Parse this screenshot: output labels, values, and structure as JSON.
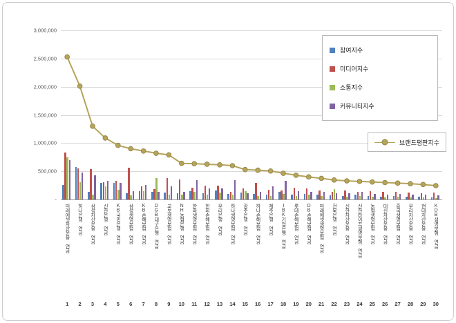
{
  "chart_data": {
    "type": "bar+line",
    "title": "",
    "xlabel": "",
    "ylabel": "",
    "ylim": [
      0,
      3000000
    ],
    "grid": true,
    "legend_position": "right-top",
    "ytick_values": [
      0,
      500000,
      1000000,
      1500000,
      2000000,
      2500000,
      3000000
    ],
    "ytick_labels": [
      "-",
      "500,000",
      "1,000,000",
      "1,500,000",
      "2,000,000",
      "2,500,000",
      "3,000,000"
    ],
    "categories": [
      "미래에셋자산운용 연금",
      "하나은행 연금",
      "삼성자산운용 연금",
      "신한은행 연금",
      "KB국민은행 연금",
      "삼성생명보험 연금",
      "KB손해보험 연금",
      "DGB대구은행 연금",
      "교보생명보험 연금",
      "NH농협은행 연금",
      "한화생명보험 연금",
      "한화손해보험 연금",
      "우리은행 연금",
      "하나생명보험 연금",
      "광주은행 연금",
      "하나손해보험 연금",
      "제주은행 연금",
      "IBK기업은행 연금",
      "롯데손해보험 연금",
      "DB손해보험 연금",
      "미래에셋생명보험 연금",
      "전북은행 연금",
      "신한자산운용 연금",
      "신한라이프생명보험 연금",
      "농협생명보험 연금",
      "대신자산운용 연금",
      "흥국생명보험 연금",
      "우리자산운용 연금",
      "현대자산운용 연금",
      "KDB생명보험 연금"
    ],
    "ranks": [
      "1",
      "2",
      "3",
      "4",
      "5",
      "6",
      "7",
      "8",
      "9",
      "10",
      "11",
      "12",
      "13",
      "14",
      "15",
      "16",
      "17",
      "18",
      "19",
      "20",
      "21",
      "22",
      "23",
      "24",
      "25",
      "26",
      "27",
      "28",
      "29",
      "30"
    ],
    "bar_series": [
      {
        "name": "참여지수",
        "color": "#4F81BD",
        "values": [
          260000,
          580000,
          130000,
          290000,
          300000,
          110000,
          150000,
          140000,
          120000,
          110000,
          150000,
          110000,
          160000,
          100000,
          120000,
          100000,
          90000,
          130000,
          80000,
          100000,
          90000,
          70000,
          60000,
          80000,
          60000,
          50000,
          60000,
          50000,
          50000,
          40000
        ]
      },
      {
        "name": "미디어지수",
        "color": "#C0504D",
        "values": [
          830000,
          555000,
          545000,
          310000,
          330000,
          560000,
          230000,
          180000,
          380000,
          350000,
          210000,
          240000,
          240000,
          130000,
          190000,
          290000,
          170000,
          160000,
          210000,
          190000,
          160000,
          130000,
          160000,
          140000,
          150000,
          140000,
          130000,
          120000,
          110000,
          120000
        ]
      },
      {
        "name": "소통지수",
        "color": "#9BBB59",
        "values": [
          750000,
          310000,
          90000,
          230000,
          170000,
          70000,
          150000,
          380000,
          90000,
          80000,
          130000,
          90000,
          120000,
          80000,
          150000,
          60000,
          60000,
          100000,
          60000,
          80000,
          60000,
          180000,
          50000,
          60000,
          50000,
          40000,
          50000,
          40000,
          40000,
          30000
        ]
      },
      {
        "name": "커뮤니티지수",
        "color": "#8064A2",
        "values": [
          700000,
          480000,
          430000,
          330000,
          300000,
          150000,
          260000,
          140000,
          230000,
          130000,
          340000,
          190000,
          190000,
          340000,
          110000,
          130000,
          230000,
          330000,
          150000,
          140000,
          130000,
          110000,
          110000,
          130000,
          100000,
          90000,
          100000,
          90000,
          80000,
          70000
        ]
      }
    ],
    "line_series": {
      "name": "브랜드평판지수",
      "color": "#B5A45B",
      "marker_stroke": "#8f8140",
      "values": [
        2530000,
        2010000,
        1300000,
        1090000,
        960000,
        900000,
        860000,
        820000,
        790000,
        640000,
        635000,
        625000,
        615000,
        600000,
        530000,
        520000,
        505000,
        465000,
        430000,
        400000,
        375000,
        345000,
        330000,
        320000,
        310000,
        300000,
        290000,
        280000,
        265000,
        245000
      ]
    }
  }
}
